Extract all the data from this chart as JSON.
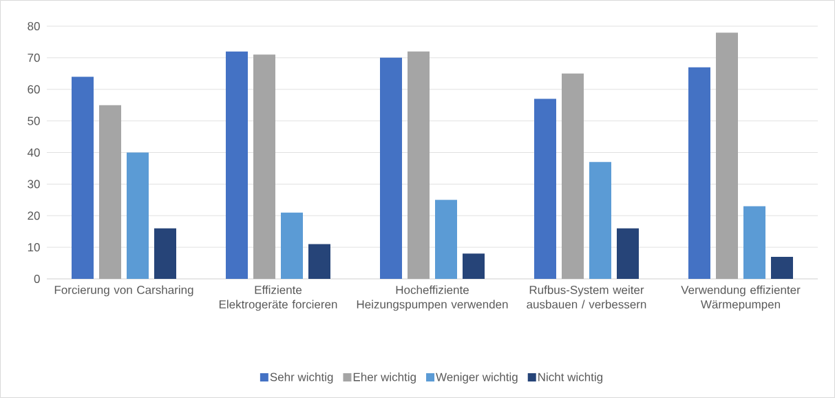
{
  "chart_data": {
    "type": "bar",
    "categories": [
      "Forcierung von Carsharing",
      "Effiziente Elektrogeräte forcieren",
      "Hocheffiziente Heizungspumpen verwenden",
      "Rufbus-System weiter ausbauen / verbessern",
      "Verwendung effizienter Wärmepumpen"
    ],
    "series": [
      {
        "name": "Sehr wichtig",
        "color": "#4472c4",
        "values": [
          64,
          72,
          70,
          57,
          67
        ]
      },
      {
        "name": "Eher wichtig",
        "color": "#a5a5a5",
        "values": [
          55,
          71,
          72,
          65,
          78
        ]
      },
      {
        "name": "Weniger wichtig",
        "color": "#5b9bd5",
        "values": [
          40,
          21,
          25,
          37,
          23
        ]
      },
      {
        "name": "Nicht wichtig",
        "color": "#264478",
        "values": [
          16,
          11,
          8,
          16,
          7
        ]
      }
    ],
    "ylim": [
      0,
      80
    ],
    "yticks": [
      0,
      10,
      20,
      30,
      40,
      50,
      60,
      70,
      80
    ],
    "grid": "y",
    "legend": "bottom"
  }
}
